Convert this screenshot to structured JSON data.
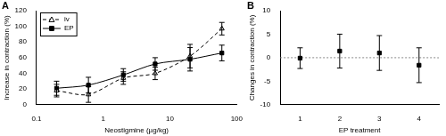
{
  "chart_data": [
    {
      "type": "line",
      "title": "A",
      "x_label": "Neostigmine (µg/kg)",
      "y_label": "Increase in contraction (%)",
      "log": "x",
      "grid": false,
      "legend": "upper left",
      "x": [
        0.2,
        0.6,
        2,
        6,
        20,
        60
      ],
      "xlim": [
        0.1,
        100
      ],
      "xticks": [
        0.1,
        1,
        10,
        100
      ],
      "ylim": [
        0,
        120
      ],
      "yticks": [
        0,
        20,
        40,
        60,
        80,
        100,
        120
      ],
      "series": [
        {
          "name": "iv",
          "color": "#000000",
          "marker": "triangle",
          "line_style": "dashed",
          "values": [
            18,
            13,
            34,
            40,
            62,
            97
          ],
          "errors": [
            8,
            10,
            8,
            8,
            15,
            8
          ]
        },
        {
          "name": "EP",
          "color": "#000000",
          "marker": "square",
          "line_style": "solid",
          "values": [
            21,
            25,
            38,
            52,
            58,
            66
          ],
          "errors": [
            9,
            10,
            8,
            8,
            15,
            10
          ]
        }
      ]
    },
    {
      "type": "scatter",
      "title": "B",
      "x_label": "EP treatment",
      "y_label": "Changes in contraction (%)",
      "grid": false,
      "color": "#000000",
      "marker": "square",
      "hline": 0,
      "x": [
        1,
        2,
        3,
        4
      ],
      "xlim": [
        0.5,
        4.5
      ],
      "xticks": [
        1,
        2,
        3,
        4
      ],
      "ylim": [
        -10,
        10
      ],
      "yticks": [
        -10,
        -5,
        0,
        5,
        10
      ],
      "values": [
        -0.1,
        1.4,
        1,
        -1.6
      ],
      "errors": [
        2.2,
        3.6,
        3.7,
        3.7
      ]
    }
  ]
}
